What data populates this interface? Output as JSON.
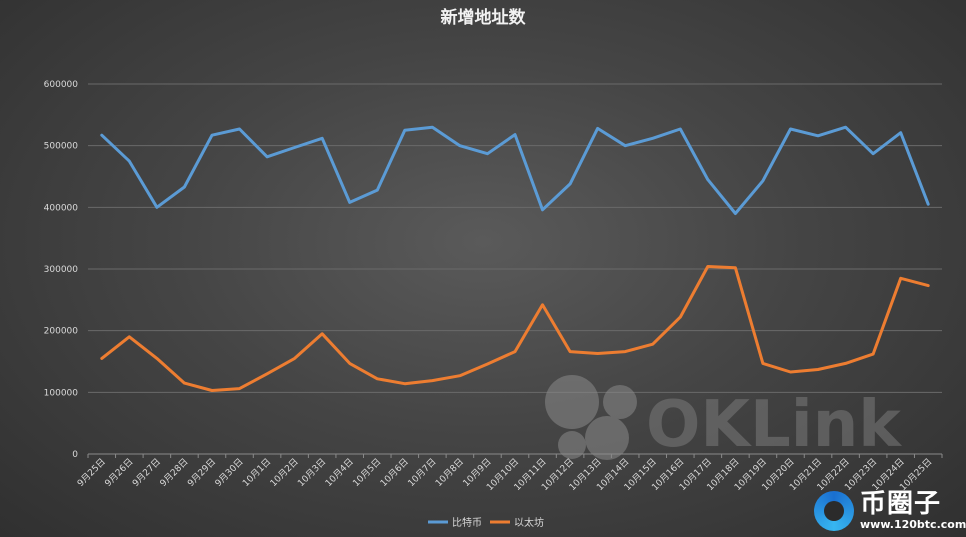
{
  "chart_data": {
    "type": "line",
    "title": "新增地址数",
    "categories": [
      "9月25日",
      "9月26日",
      "9月27日",
      "9月28日",
      "9月29日",
      "9月30日",
      "10月1日",
      "10月2日",
      "10月3日",
      "10月4日",
      "10月5日",
      "10月6日",
      "10月7日",
      "10月8日",
      "10月9日",
      "10月10日",
      "10月11日",
      "10月12日",
      "10月13日",
      "10月14日",
      "10月15日",
      "10月16日",
      "10月17日",
      "10月18日",
      "10月19日",
      "10月20日",
      "10月21日",
      "10月22日",
      "10月23日",
      "10月24日",
      "10月25日"
    ],
    "series": [
      {
        "name": "比特币",
        "color": "#5b9bd5",
        "values": [
          517000,
          475000,
          400000,
          433000,
          517000,
          527000,
          482000,
          497000,
          512000,
          408000,
          428000,
          525000,
          530000,
          500000,
          487000,
          518000,
          396000,
          438000,
          528000,
          500000,
          512000,
          527000,
          445000,
          390000,
          443000,
          527000,
          516000,
          530000,
          487000,
          521000,
          405000
        ]
      },
      {
        "name": "以太坊",
        "color": "#ed7d31",
        "values": [
          155000,
          190000,
          155000,
          115000,
          103000,
          106000,
          130000,
          155000,
          195000,
          147000,
          122000,
          114000,
          119000,
          127000,
          146000,
          166000,
          242000,
          166000,
          163000,
          166000,
          178000,
          222000,
          304000,
          302000,
          147000,
          133000,
          137000,
          147000,
          162000,
          285000,
          273000
        ]
      }
    ],
    "yticks": [
      "0",
      "100000",
      "200000",
      "300000",
      "400000",
      "500000",
      "600000"
    ],
    "ylim": [
      0,
      600000
    ],
    "grid": true,
    "legend": "bottom"
  },
  "watermark": {
    "text": "OKLink"
  },
  "logo": {
    "main": "币圈子",
    "sub": "www.120btc.com"
  }
}
